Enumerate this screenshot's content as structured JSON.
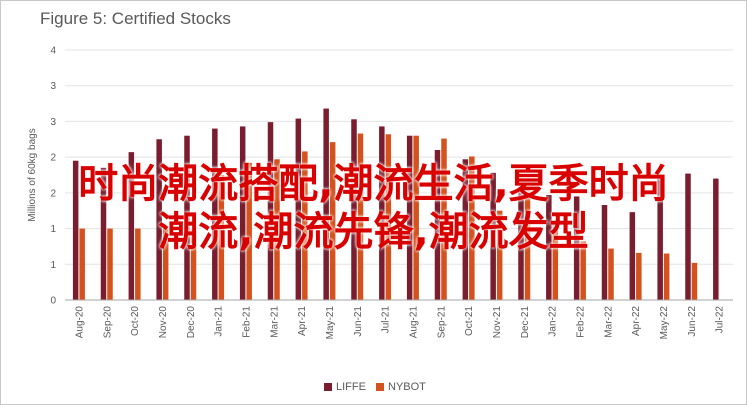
{
  "chart_data": {
    "type": "bar",
    "title": "Figure 5: Certified Stocks",
    "xlabel": "",
    "ylabel": "Millions of 60kg bags",
    "ylim": [
      0,
      3.5
    ],
    "yticks": [
      0,
      0.5,
      1,
      1.5,
      2,
      2.5,
      3,
      3.5
    ],
    "ytick_labels": [
      "0",
      "1",
      "1",
      "2",
      "2",
      "3",
      "3",
      "4"
    ],
    "categories": [
      "Aug-20",
      "Sep-20",
      "Oct-20",
      "Nov-20",
      "Dec-20",
      "Jan-21",
      "Feb-21",
      "Mar-21",
      "Apr-21",
      "May-21",
      "Jun-21",
      "Jul-21",
      "Aug-21",
      "Sep-21",
      "Oct-21",
      "Nov-21",
      "Dec-21",
      "Jan-22",
      "Feb-22",
      "Mar-22",
      "Apr-22",
      "May-22",
      "Jun-22",
      "Jul-22"
    ],
    "series": [
      {
        "name": "LIFFE",
        "color": "#7a1d2e",
        "values": [
          1.95,
          1.85,
          2.07,
          2.25,
          2.3,
          2.4,
          2.43,
          2.49,
          2.54,
          2.68,
          2.53,
          2.43,
          2.3,
          2.1,
          1.97,
          1.78,
          1.67,
          1.47,
          1.45,
          1.33,
          1.23,
          1.72,
          1.77,
          1.7
        ]
      },
      {
        "name": "NYBOT",
        "color": "#d4521d",
        "values": [
          1.0,
          1.0,
          1.0,
          1.0,
          1.0,
          1.75,
          1.92,
          1.97,
          2.08,
          2.21,
          2.33,
          2.32,
          2.3,
          2.26,
          2.01,
          1.25,
          1.67,
          1.1,
          0.82,
          0.72,
          0.66,
          0.65,
          0.52,
          null
        ]
      }
    ],
    "legend_position": "bottom-center",
    "grid": true
  },
  "overlay": {
    "line1": "时尚潮流搭配,潮流生活,夏季时尚",
    "line2": "潮流,潮流先锋,潮流发型"
  }
}
